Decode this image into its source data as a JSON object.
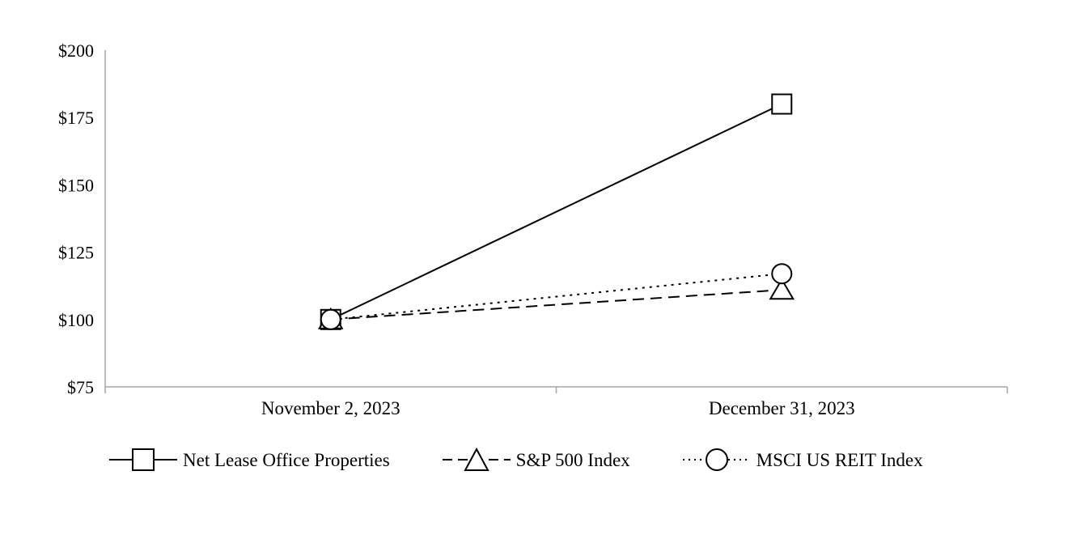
{
  "chart_data": {
    "type": "line",
    "title": "",
    "categories": [
      "November 2, 2023",
      "December 31, 2023"
    ],
    "series": [
      {
        "name": "Net Lease Office Properties",
        "values": [
          100,
          180
        ],
        "line_style": "solid",
        "marker": "square"
      },
      {
        "name": "S&P 500 Index",
        "values": [
          100,
          111
        ],
        "line_style": "dashed",
        "marker": "triangle"
      },
      {
        "name": "MSCI US REIT Index",
        "values": [
          100,
          117
        ],
        "line_style": "dotted",
        "marker": "circle"
      }
    ],
    "ylim": [
      75,
      200
    ],
    "y_ticks": [
      75,
      100,
      125,
      150,
      175,
      200
    ],
    "y_tick_prefix": "$",
    "xlabel": "",
    "ylabel": "",
    "grid": false,
    "legend_position": "bottom",
    "colors": {
      "series_stroke": "#000000",
      "marker_fill": "#ffffff",
      "axis_line": "#a6a6a6",
      "text": "#000000"
    }
  }
}
